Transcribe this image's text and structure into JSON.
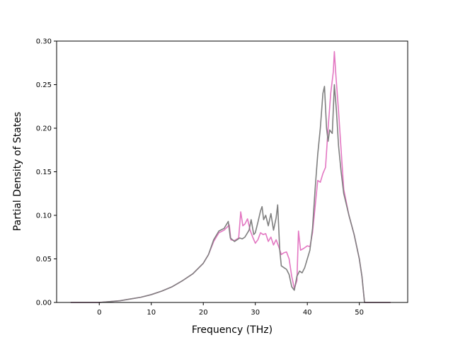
{
  "chart_data": {
    "type": "line",
    "title": "",
    "xlabel": "Frequency (THz)",
    "ylabel": "Partial Density of States",
    "xlim": [
      -8.2,
      59.3
    ],
    "ylim": [
      0.0,
      0.3
    ],
    "x_ticks": [
      0,
      10,
      20,
      30,
      40,
      50
    ],
    "y_ticks": [
      0.0,
      0.05,
      0.1,
      0.15,
      0.2,
      0.25,
      0.3
    ],
    "x_tick_labels": [
      "0",
      "10",
      "20",
      "30",
      "40",
      "50"
    ],
    "y_tick_labels": [
      "0.00",
      "0.05",
      "0.10",
      "0.15",
      "0.20",
      "0.25",
      "0.30"
    ],
    "grid": false,
    "series": [
      {
        "color": "#e377c2",
        "points": [
          [
            -5.5,
            0
          ],
          [
            0,
            0
          ],
          [
            2,
            0.001
          ],
          [
            4,
            0.002
          ],
          [
            6,
            0.004
          ],
          [
            8,
            0.006
          ],
          [
            10,
            0.009
          ],
          [
            12,
            0.013
          ],
          [
            14,
            0.018
          ],
          [
            16,
            0.025
          ],
          [
            18,
            0.033
          ],
          [
            20,
            0.045
          ],
          [
            21,
            0.055
          ],
          [
            22,
            0.07
          ],
          [
            23,
            0.08
          ],
          [
            24,
            0.083
          ],
          [
            25,
            0.089
          ],
          [
            25.3,
            0.072
          ],
          [
            26,
            0.071
          ],
          [
            26.8,
            0.074
          ],
          [
            27.2,
            0.104
          ],
          [
            27.6,
            0.088
          ],
          [
            28,
            0.09
          ],
          [
            28.5,
            0.096
          ],
          [
            29,
            0.083
          ],
          [
            29.5,
            0.075
          ],
          [
            30,
            0.068
          ],
          [
            30.5,
            0.072
          ],
          [
            31,
            0.08
          ],
          [
            31.5,
            0.078
          ],
          [
            32,
            0.079
          ],
          [
            32.5,
            0.07
          ],
          [
            33,
            0.075
          ],
          [
            33.5,
            0.066
          ],
          [
            34,
            0.072
          ],
          [
            34.5,
            0.064
          ],
          [
            35,
            0.055
          ],
          [
            35.5,
            0.057
          ],
          [
            36,
            0.058
          ],
          [
            36.5,
            0.05
          ],
          [
            37,
            0.03
          ],
          [
            37.5,
            0.016
          ],
          [
            38,
            0.025
          ],
          [
            38.3,
            0.082
          ],
          [
            38.7,
            0.06
          ],
          [
            39.3,
            0.062
          ],
          [
            40,
            0.065
          ],
          [
            40.5,
            0.064
          ],
          [
            41,
            0.08
          ],
          [
            41.5,
            0.11
          ],
          [
            42,
            0.14
          ],
          [
            42.5,
            0.138
          ],
          [
            43,
            0.148
          ],
          [
            43.5,
            0.155
          ],
          [
            44,
            0.2
          ],
          [
            44.5,
            0.24
          ],
          [
            45,
            0.265
          ],
          [
            45.2,
            0.288
          ],
          [
            45.5,
            0.26
          ],
          [
            46,
            0.22
          ],
          [
            46.5,
            0.175
          ],
          [
            47,
            0.13
          ],
          [
            48,
            0.1
          ],
          [
            49,
            0.078
          ],
          [
            50,
            0.05
          ],
          [
            50.5,
            0.03
          ],
          [
            51,
            0.0
          ],
          [
            56,
            0.0
          ]
        ]
      },
      {
        "color": "#7f7f7f",
        "points": [
          [
            -5.5,
            0
          ],
          [
            0,
            0
          ],
          [
            2,
            0.001
          ],
          [
            4,
            0.002
          ],
          [
            6,
            0.004
          ],
          [
            8,
            0.006
          ],
          [
            10,
            0.009
          ],
          [
            12,
            0.013
          ],
          [
            14,
            0.018
          ],
          [
            16,
            0.025
          ],
          [
            18,
            0.033
          ],
          [
            20,
            0.045
          ],
          [
            21,
            0.055
          ],
          [
            22,
            0.072
          ],
          [
            23,
            0.082
          ],
          [
            24,
            0.085
          ],
          [
            24.8,
            0.093
          ],
          [
            25.2,
            0.074
          ],
          [
            26,
            0.07
          ],
          [
            27,
            0.074
          ],
          [
            27.5,
            0.073
          ],
          [
            28,
            0.075
          ],
          [
            28.8,
            0.083
          ],
          [
            29.2,
            0.095
          ],
          [
            29.7,
            0.078
          ],
          [
            30,
            0.08
          ],
          [
            30.5,
            0.092
          ],
          [
            31,
            0.105
          ],
          [
            31.3,
            0.11
          ],
          [
            31.6,
            0.095
          ],
          [
            32,
            0.1
          ],
          [
            32.5,
            0.088
          ],
          [
            33,
            0.102
          ],
          [
            33.5,
            0.083
          ],
          [
            34,
            0.097
          ],
          [
            34.3,
            0.112
          ],
          [
            34.7,
            0.06
          ],
          [
            35,
            0.042
          ],
          [
            35.5,
            0.04
          ],
          [
            36,
            0.038
          ],
          [
            36.5,
            0.032
          ],
          [
            37,
            0.018
          ],
          [
            37.5,
            0.014
          ],
          [
            38,
            0.03
          ],
          [
            38.5,
            0.036
          ],
          [
            39,
            0.034
          ],
          [
            39.5,
            0.04
          ],
          [
            40,
            0.05
          ],
          [
            40.5,
            0.06
          ],
          [
            41,
            0.085
          ],
          [
            41.5,
            0.13
          ],
          [
            42,
            0.17
          ],
          [
            42.5,
            0.2
          ],
          [
            43,
            0.24
          ],
          [
            43.3,
            0.248
          ],
          [
            43.7,
            0.2
          ],
          [
            44,
            0.185
          ],
          [
            44.3,
            0.198
          ],
          [
            44.8,
            0.194
          ],
          [
            45.2,
            0.25
          ],
          [
            45.6,
            0.22
          ],
          [
            46,
            0.18
          ],
          [
            46.5,
            0.15
          ],
          [
            47,
            0.125
          ],
          [
            48,
            0.1
          ],
          [
            49,
            0.078
          ],
          [
            50,
            0.05
          ],
          [
            50.5,
            0.03
          ],
          [
            51,
            0.0
          ],
          [
            56,
            0.0
          ]
        ]
      }
    ]
  }
}
